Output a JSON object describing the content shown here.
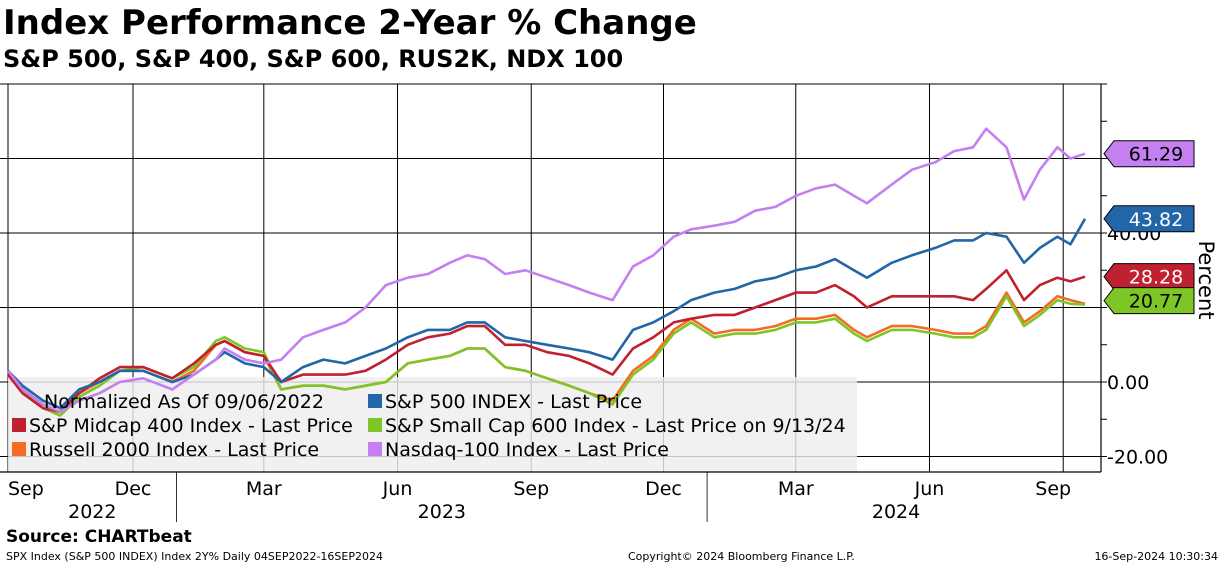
{
  "chart_data": {
    "type": "line",
    "title": "Index Performance 2-Year % Change",
    "subtitle": "S&P 500, S&P 400, S&P 600, RUS2K, NDX 100",
    "ylabel": "Percent",
    "ylim": [
      -22,
      80
    ],
    "yticks": [
      -20,
      0,
      40
    ],
    "ytick_labels": [
      "-20.00",
      "0.00",
      "40.00"
    ],
    "xlim": [
      "2022-09-06",
      "2024-09-16"
    ],
    "x_month_ticks": [
      {
        "date": "2022-09-06",
        "label": "Sep"
      },
      {
        "date": "2022-12-01",
        "label": "Dec"
      },
      {
        "date": "2023-03-01",
        "label": "Mar"
      },
      {
        "date": "2023-06-01",
        "label": "Jun"
      },
      {
        "date": "2023-09-01",
        "label": "Sep"
      },
      {
        "date": "2023-12-01",
        "label": "Dec"
      },
      {
        "date": "2024-03-01",
        "label": "Mar"
      },
      {
        "date": "2024-06-01",
        "label": "Jun"
      },
      {
        "date": "2024-09-01",
        "label": "Sep"
      }
    ],
    "x_year_labels": [
      "2022",
      "2023",
      "2024"
    ],
    "grid": true,
    "legend_title": "Normalized As Of 09/06/2022",
    "legend_position": "bottom-left",
    "dates": [
      "2022-09-06",
      "2022-09-16",
      "2022-09-30",
      "2022-10-12",
      "2022-10-25",
      "2022-11-08",
      "2022-11-22",
      "2022-12-08",
      "2022-12-28",
      "2023-01-12",
      "2023-01-27",
      "2023-02-02",
      "2023-02-16",
      "2023-03-01",
      "2023-03-13",
      "2023-03-28",
      "2023-04-11",
      "2023-04-26",
      "2023-05-10",
      "2023-05-24",
      "2023-06-08",
      "2023-06-22",
      "2023-07-07",
      "2023-07-19",
      "2023-07-31",
      "2023-08-14",
      "2023-08-28",
      "2023-09-12",
      "2023-09-27",
      "2023-10-11",
      "2023-10-27",
      "2023-11-10",
      "2023-11-24",
      "2023-12-08",
      "2023-12-20",
      "2024-01-05",
      "2024-01-19",
      "2024-02-02",
      "2024-02-16",
      "2024-03-01",
      "2024-03-15",
      "2024-03-28",
      "2024-04-10",
      "2024-04-19",
      "2024-05-06",
      "2024-05-20",
      "2024-06-05",
      "2024-06-18",
      "2024-07-01",
      "2024-07-10",
      "2024-07-24",
      "2024-08-05",
      "2024-08-16",
      "2024-08-28",
      "2024-09-06",
      "2024-09-16"
    ],
    "series": [
      {
        "name": "S&P 500 INDEX - Last Price",
        "color": "#2266a8",
        "last_value": 43.82,
        "last_label": "43.82",
        "values": [
          3,
          -1,
          -5,
          -7,
          -2,
          0,
          3,
          3,
          0,
          2,
          6,
          8,
          5,
          4,
          0,
          4,
          6,
          5,
          7,
          9,
          12,
          14,
          14,
          16,
          16,
          12,
          11,
          10,
          9,
          8,
          6,
          14,
          16,
          19,
          22,
          24,
          25,
          27,
          28,
          30,
          31,
          33,
          30,
          28,
          32,
          34,
          36,
          38,
          38,
          40,
          39,
          32,
          36,
          39,
          37,
          43.82
        ]
      },
      {
        "name": "S&P Midcap 400 Index - Last Price",
        "color": "#c0202f",
        "last_value": 28.28,
        "last_label": "28.28",
        "values": [
          2,
          -3,
          -7,
          -8,
          -3,
          1,
          4,
          4,
          1,
          5,
          10,
          11,
          8,
          7,
          0,
          2,
          2,
          2,
          3,
          6,
          10,
          12,
          13,
          15,
          15,
          10,
          10,
          8,
          7,
          5,
          2,
          9,
          12,
          16,
          17,
          18,
          18,
          20,
          22,
          24,
          24,
          26,
          23,
          20,
          23,
          23,
          23,
          23,
          22,
          25,
          30,
          22,
          26,
          28,
          27,
          28.28
        ]
      },
      {
        "name": "S&P Small Cap 600 Index - Last Price on 9/13/24",
        "color": "#7ec626",
        "last_value": 20.77,
        "last_label": "20.77",
        "values": [
          3,
          -2,
          -7,
          -9,
          -4,
          -1,
          3,
          4,
          1,
          4,
          11,
          12,
          9,
          8,
          -2,
          -1,
          -1,
          -2,
          -1,
          0,
          5,
          6,
          7,
          9,
          9,
          4,
          3,
          1,
          -1,
          -3,
          -6,
          2,
          6,
          13,
          16,
          12,
          13,
          13,
          14,
          16,
          16,
          17,
          13,
          11,
          14,
          14,
          13,
          12,
          12,
          14,
          23,
          15,
          18,
          22,
          21,
          20.77
        ]
      },
      {
        "name": "Russell 2000 Index - Last Price",
        "color": "#f36c21",
        "last_value": 20.77,
        "last_label": "",
        "values": [
          3,
          -2,
          -6,
          -8,
          -3,
          0,
          3,
          3,
          0,
          3,
          10,
          11,
          8,
          7,
          -2,
          -1,
          -1,
          -2,
          -1,
          0,
          5,
          6,
          7,
          9,
          9,
          4,
          3,
          1,
          -1,
          -3,
          -5,
          3,
          7,
          14,
          17,
          13,
          14,
          14,
          15,
          17,
          17,
          18,
          14,
          12,
          15,
          15,
          14,
          13,
          13,
          15,
          24,
          16,
          19,
          23,
          22,
          21
        ]
      },
      {
        "name": "Nasdaq-100 Index - Last Price",
        "color": "#c47ff0",
        "last_value": 61.29,
        "last_label": "61.29",
        "values": [
          3,
          -2,
          -6,
          -8,
          -5,
          -3,
          0,
          1,
          -2,
          2,
          6,
          9,
          6,
          5,
          6,
          12,
          14,
          16,
          20,
          26,
          28,
          29,
          32,
          34,
          33,
          29,
          30,
          28,
          26,
          24,
          22,
          31,
          34,
          39,
          41,
          42,
          43,
          46,
          47,
          50,
          52,
          53,
          50,
          48,
          53,
          57,
          59,
          62,
          63,
          68,
          63,
          49,
          57,
          63,
          60,
          61.29
        ]
      }
    ]
  }
}
